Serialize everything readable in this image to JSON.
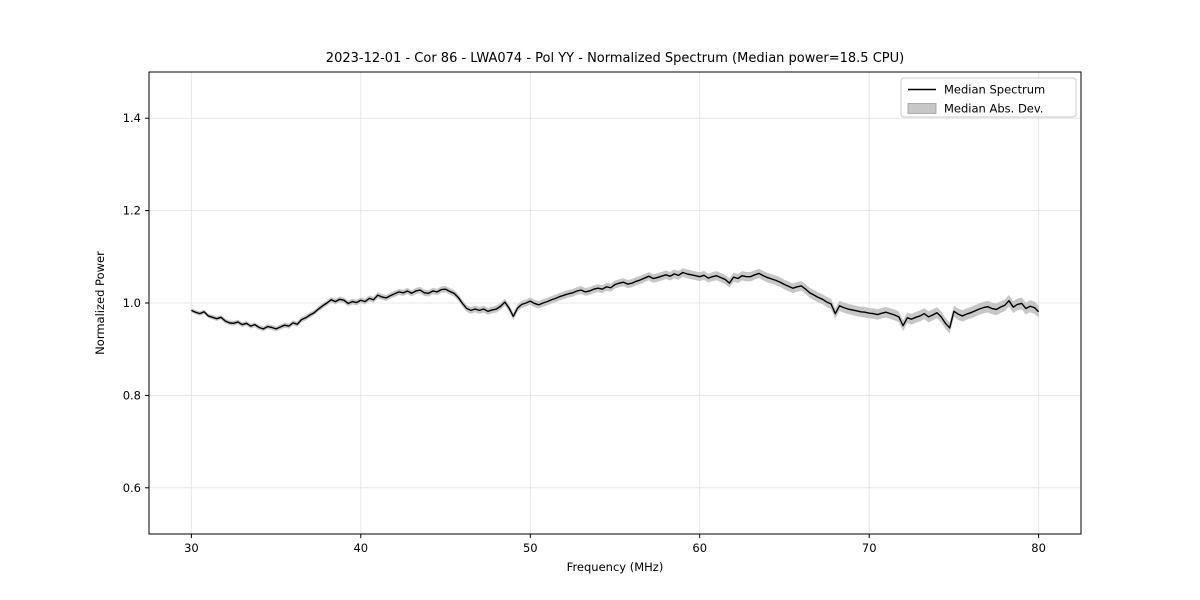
{
  "figure": {
    "background": "#ffffff"
  },
  "chart_data": {
    "type": "line",
    "title": "2023-12-01 - Cor 86 - LWA074 - Pol YY - Normalized Spectrum (Median power=18.5 CPU)",
    "xlabel": "Frequency (MHz)",
    "ylabel": "Normalized Power",
    "xlim": [
      27.5,
      82.5
    ],
    "ylim": [
      0.5,
      1.5
    ],
    "x_ticks": [
      "30",
      "40",
      "50",
      "60",
      "70",
      "80"
    ],
    "y_ticks": [
      "0.6",
      "0.8",
      "1.0",
      "1.2",
      "1.4"
    ],
    "grid": true,
    "grid_color": "#e7e7e7",
    "legend_position": "upper right",
    "line_color": "#000000",
    "band_color": "#c7c7c7",
    "series": [
      {
        "name": "Median Spectrum",
        "type": "line",
        "color": "#000000",
        "x_start": 30.0,
        "x_step": 0.25,
        "n_points": 201,
        "values": [
          0.984,
          0.98,
          0.977,
          0.981,
          0.972,
          0.969,
          0.966,
          0.969,
          0.961,
          0.957,
          0.956,
          0.959,
          0.953,
          0.956,
          0.95,
          0.953,
          0.947,
          0.944,
          0.949,
          0.947,
          0.944,
          0.948,
          0.952,
          0.95,
          0.957,
          0.954,
          0.964,
          0.968,
          0.974,
          0.979,
          0.987,
          0.994,
          1.0,
          1.007,
          1.003,
          1.008,
          1.006,
          0.999,
          1.003,
          1.001,
          1.006,
          1.003,
          1.01,
          1.007,
          1.017,
          1.013,
          1.011,
          1.016,
          1.02,
          1.024,
          1.022,
          1.026,
          1.021,
          1.026,
          1.028,
          1.022,
          1.021,
          1.026,
          1.024,
          1.029,
          1.03,
          1.025,
          1.021,
          1.012,
          0.999,
          0.988,
          0.984,
          0.987,
          0.984,
          0.987,
          0.982,
          0.985,
          0.987,
          0.993,
          1.002,
          0.989,
          0.971,
          0.989,
          0.997,
          1.0,
          1.004,
          0.999,
          0.996,
          1.0,
          1.003,
          1.007,
          1.01,
          1.014,
          1.017,
          1.02,
          1.022,
          1.026,
          1.028,
          1.024,
          1.026,
          1.03,
          1.032,
          1.03,
          1.035,
          1.033,
          1.04,
          1.043,
          1.045,
          1.041,
          1.043,
          1.047,
          1.05,
          1.054,
          1.058,
          1.053,
          1.055,
          1.058,
          1.061,
          1.058,
          1.063,
          1.06,
          1.066,
          1.063,
          1.061,
          1.059,
          1.057,
          1.06,
          1.054,
          1.057,
          1.059,
          1.055,
          1.051,
          1.043,
          1.056,
          1.053,
          1.059,
          1.057,
          1.057,
          1.061,
          1.064,
          1.059,
          1.055,
          1.052,
          1.049,
          1.045,
          1.04,
          1.036,
          1.032,
          1.035,
          1.037,
          1.03,
          1.022,
          1.017,
          1.012,
          1.008,
          1.002,
          0.998,
          0.977,
          0.994,
          0.99,
          0.987,
          0.985,
          0.983,
          0.981,
          0.98,
          0.978,
          0.977,
          0.975,
          0.978,
          0.98,
          0.977,
          0.974,
          0.97,
          0.951,
          0.968,
          0.965,
          0.969,
          0.972,
          0.977,
          0.97,
          0.974,
          0.979,
          0.97,
          0.956,
          0.946,
          0.982,
          0.976,
          0.972,
          0.976,
          0.979,
          0.983,
          0.987,
          0.99,
          0.992,
          0.988,
          0.986,
          0.991,
          0.995,
          1.005,
          0.991,
          0.997,
          0.999,
          0.988,
          0.993,
          0.99,
          0.981
        ]
      },
      {
        "name": "Median Abs. Dev.",
        "type": "band",
        "color": "#c7c7c7",
        "around_series": "Median Spectrum",
        "halfwidth_start": 0.0045,
        "halfwidth_end": 0.013
      }
    ]
  }
}
